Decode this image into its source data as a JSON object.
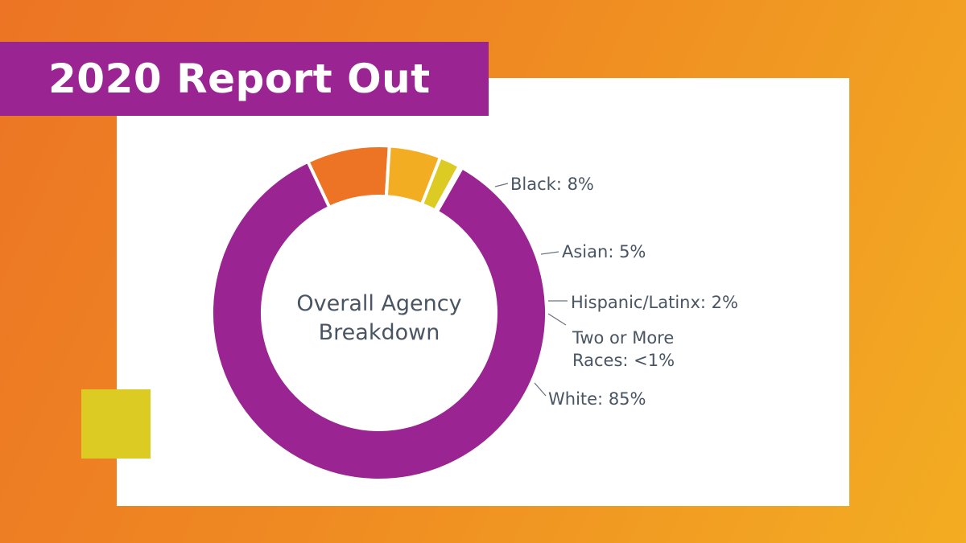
{
  "title": "2020 Report Out",
  "colors": {
    "background_start": "#ec7424",
    "background_end": "#f3ad22",
    "title_bar": "#9a2592",
    "accent_square": "#dccb22",
    "label_text": "#4a5563"
  },
  "chart_data": {
    "type": "pie",
    "variant": "donut",
    "center_label": [
      "Overall Agency",
      "Breakdown"
    ],
    "slices": [
      {
        "name": "Black",
        "value": 8,
        "color": "#ec7424",
        "label": [
          "Black: 8%"
        ]
      },
      {
        "name": "Asian",
        "value": 5,
        "color": "#f3ad22",
        "label": [
          "Asian: 5%"
        ]
      },
      {
        "name": "Hispanic/Latinx",
        "value": 2,
        "color": "#dccb22",
        "label": [
          "Hispanic/Latinx: 2%"
        ]
      },
      {
        "name": "Two or More Races",
        "value": 0.3,
        "color": "#9a2592",
        "label": [
          "Two or More",
          "Races: <1%"
        ]
      },
      {
        "name": "White",
        "value": 85,
        "color": "#9a2592",
        "label": [
          "White: 85%"
        ]
      }
    ],
    "legend": "none"
  }
}
